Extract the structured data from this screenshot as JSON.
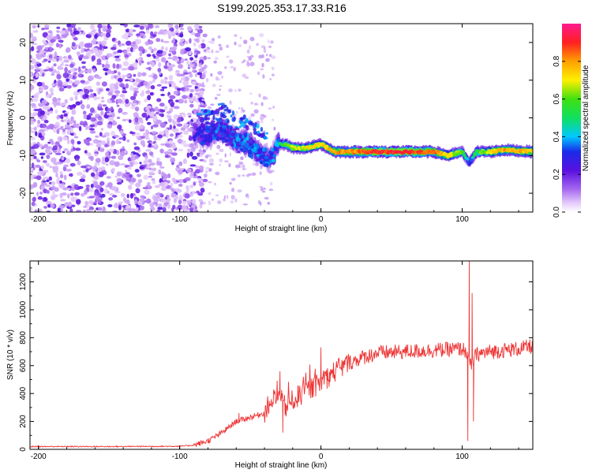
{
  "title": "S199.2025.353.17.33.R16",
  "colors": {
    "signal_line": "#ee3333",
    "noise_dots": "#8e55e6",
    "colormap": [
      "#ffffff",
      "#e9d2fb",
      "#b07cf2",
      "#6a17e4",
      "#1f1fe0",
      "#00d8ff",
      "#18e018",
      "#fff200",
      "#ffa000",
      "#ff1a1a",
      "#ff1a90"
    ]
  },
  "chart_data": [
    {
      "type": "heatmap",
      "name": "spectrogram",
      "xlabel": "Height of straight line (km)",
      "ylabel": "Frequency (Hz)",
      "xlim": [
        -206,
        150
      ],
      "ylim": [
        -25,
        25
      ],
      "xticks": [
        -200,
        -100,
        0,
        100
      ],
      "yticks": [
        -20,
        -10,
        0,
        10,
        20
      ],
      "colorbar": {
        "label": "Normalized spectral amplitude",
        "range": [
          0,
          1
        ],
        "ticks": [
          "0.0",
          "0.2",
          "0.4",
          "0.6",
          "0.8"
        ],
        "tick_values": [
          0.0,
          0.2,
          0.4,
          0.6,
          0.8
        ]
      },
      "ridge": {
        "description_points_x_km": [
          -90,
          -80,
          -70,
          -60,
          -50,
          -42,
          -35,
          -30,
          -25,
          -20,
          -10,
          0,
          10,
          20,
          40,
          60,
          80,
          90,
          100,
          105,
          110,
          120,
          130,
          150
        ],
        "frequency_hz": [
          -4,
          -5,
          -3,
          -6,
          -7,
          -10,
          -11,
          -7,
          -7,
          -8,
          -8,
          -7,
          -9,
          -9,
          -9,
          -9,
          -9,
          -10,
          -9,
          -12,
          -9,
          -9,
          -8.5,
          -9
        ],
        "amplitude": [
          0.25,
          0.3,
          0.3,
          0.35,
          0.4,
          0.35,
          0.35,
          0.4,
          0.6,
          0.65,
          0.7,
          0.7,
          0.8,
          0.8,
          0.9,
          0.9,
          0.85,
          0.7,
          0.6,
          0.3,
          0.55,
          0.7,
          0.8,
          0.75
        ]
      },
      "noise_region_x_km": [
        -206,
        -88
      ]
    },
    {
      "type": "line",
      "name": "snr",
      "xlabel": "Height of straight line (km)",
      "ylabel": "SNR (10 * v/v)",
      "xlim": [
        -206,
        150
      ],
      "ylim": [
        0,
        1350
      ],
      "xticks": [
        -200,
        -100,
        0,
        100
      ],
      "yticks": [
        0,
        200,
        400,
        600,
        800,
        1000,
        1200
      ],
      "envelope": {
        "x": [
          -206,
          -150,
          -100,
          -90,
          -80,
          -70,
          -60,
          -50,
          -40,
          -35,
          -30,
          -25,
          -20,
          -10,
          0,
          10,
          20,
          30,
          40,
          60,
          80,
          90,
          100,
          103,
          106,
          108,
          110,
          120,
          130,
          140,
          150
        ],
        "y": [
          20,
          20,
          22,
          30,
          60,
          120,
          200,
          230,
          260,
          350,
          380,
          300,
          350,
          420,
          480,
          560,
          620,
          660,
          690,
          700,
          710,
          715,
          720,
          700,
          600,
          640,
          680,
          700,
          710,
          720,
          740
        ]
      },
      "spikes": [
        {
          "x": 104,
          "y": 60
        },
        {
          "x": 105,
          "y": 1350
        },
        {
          "x": 107,
          "y": 1120
        },
        {
          "x": 108,
          "y": 200
        },
        {
          "x": -29,
          "y": 560
        },
        {
          "x": -27,
          "y": 120
        },
        {
          "x": -16,
          "y": 450
        },
        {
          "x": 0,
          "y": 730
        },
        {
          "x": -58,
          "y": 260
        }
      ]
    }
  ]
}
